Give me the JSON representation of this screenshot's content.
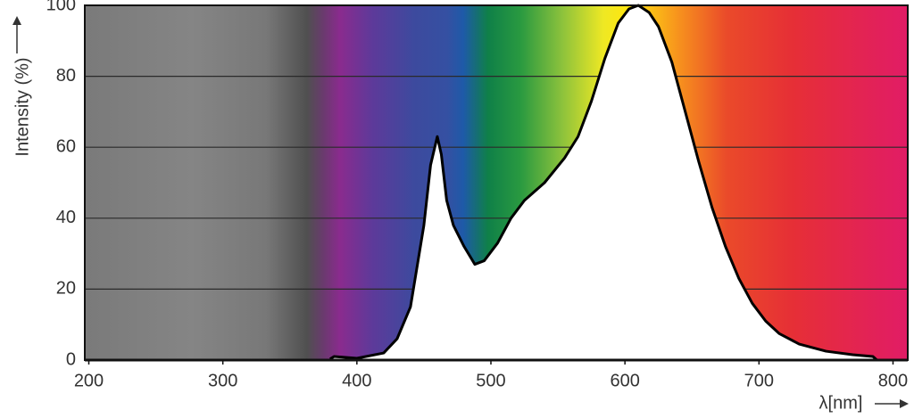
{
  "chart_data": {
    "type": "area",
    "y_label": "Intensity (%)",
    "x_label": "λ[nm]",
    "xlim": [
      197,
      811
    ],
    "ylim": [
      0,
      100
    ],
    "xticks": [
      200,
      300,
      400,
      500,
      600,
      700,
      800
    ],
    "yticks": [
      0,
      20,
      40,
      60,
      80,
      100
    ],
    "grid": true,
    "series": [
      {
        "color": "#000000",
        "x": [
          380,
          383,
          400,
          420,
          430,
          440,
          450,
          455,
          460,
          463,
          467,
          472,
          480,
          488,
          495,
          505,
          515,
          525,
          540,
          555,
          565,
          575,
          585,
          595,
          603,
          610,
          618,
          625,
          635,
          645,
          655,
          665,
          675,
          685,
          695,
          705,
          715,
          730,
          750,
          770,
          785,
          788
        ],
        "values": [
          0.3,
          1,
          0.5,
          2,
          6,
          15,
          38,
          55,
          63,
          58,
          45,
          38,
          32,
          27,
          28,
          33,
          40,
          45,
          50,
          57,
          63,
          73,
          85,
          95,
          99,
          100,
          98,
          94,
          84,
          70,
          56,
          43,
          32,
          23,
          16,
          11,
          7.5,
          4.5,
          2.5,
          1.5,
          1,
          0
        ]
      }
    ]
  }
}
